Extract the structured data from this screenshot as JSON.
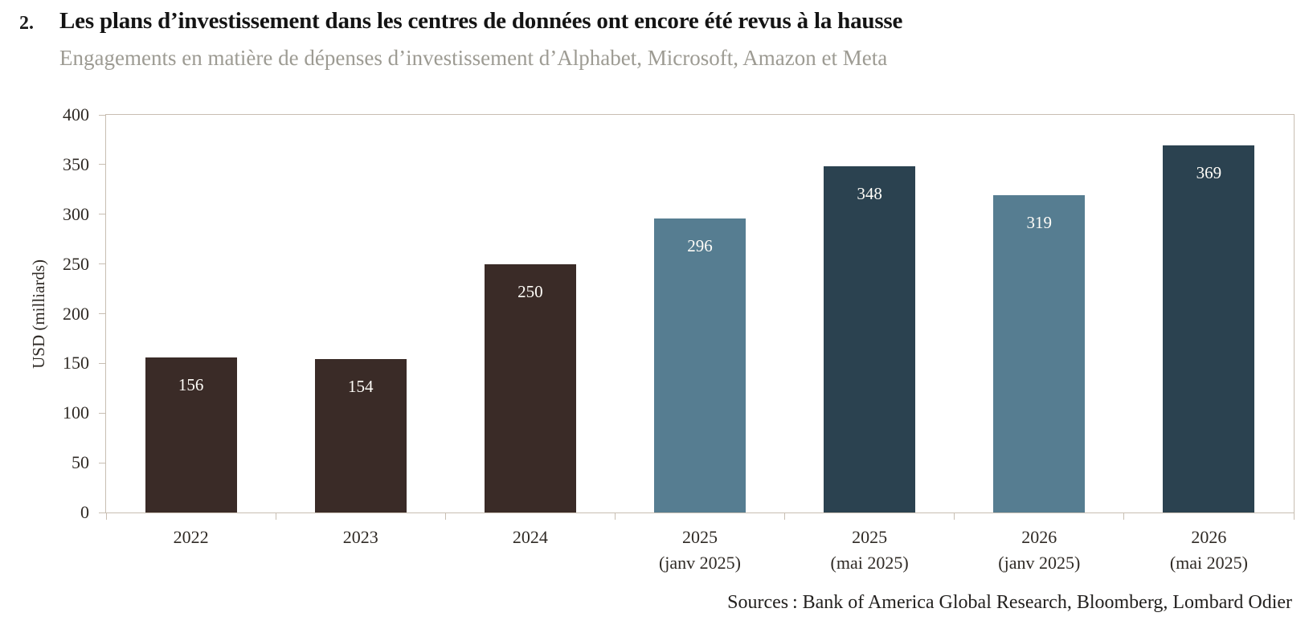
{
  "header": {
    "index": "2."
  },
  "footer": {
    "source": "Sources : Bank of America Global Research, Bloomberg, Lombard Odier"
  },
  "colors": {
    "bar_brown": "#3a2b27",
    "bar_light_blue": "#567d91",
    "bar_dark_slate": "#2b4250",
    "axis": "#c8beb2",
    "tick_text": "#2f2a25",
    "subtitle_text": "#9d9b93",
    "value_label_text": "#fffdf8"
  },
  "chart_data": {
    "type": "bar",
    "title": "Les plans d’investissement dans les centres de données ont encore été revus à la hausse",
    "subtitle": "Engagements en matière de dépenses d’investissement d’Alphabet, Microsoft, Amazon et Meta",
    "ylabel": "USD (milliards)",
    "xlabel": "",
    "ylim": [
      0,
      400
    ],
    "ytick_step": 50,
    "grid": false,
    "legend": false,
    "categories": [
      "2022",
      "2023",
      "2024",
      "2025 (janv 2025)",
      "2025 (mai 2025)",
      "2026 (janv 2025)",
      "2026 (mai 2025)"
    ],
    "values": [
      156,
      154,
      250,
      296,
      348,
      319,
      369
    ],
    "bars": [
      {
        "label": "2022",
        "sublabel": "",
        "value": 156,
        "color_key": "bar_brown"
      },
      {
        "label": "2023",
        "sublabel": "",
        "value": 154,
        "color_key": "bar_brown"
      },
      {
        "label": "2024",
        "sublabel": "",
        "value": 250,
        "color_key": "bar_brown"
      },
      {
        "label": "2025",
        "sublabel": "(janv 2025)",
        "value": 296,
        "color_key": "bar_light_blue"
      },
      {
        "label": "2025",
        "sublabel": "(mai 2025)",
        "value": 348,
        "color_key": "bar_dark_slate"
      },
      {
        "label": "2026",
        "sublabel": "(janv 2025)",
        "value": 319,
        "color_key": "bar_light_blue"
      },
      {
        "label": "2026",
        "sublabel": "(mai 2025)",
        "value": 369,
        "color_key": "bar_dark_slate"
      }
    ]
  }
}
